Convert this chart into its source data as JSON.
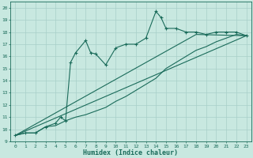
{
  "xlabel": "Humidex (Indice chaleur)",
  "bg_color": "#c8e8e0",
  "line_color": "#1a6b5a",
  "grid_color": "#a8cfc8",
  "xlim": [
    -0.5,
    23.5
  ],
  "ylim": [
    9,
    20.5
  ],
  "xticks": [
    0,
    1,
    2,
    3,
    4,
    5,
    6,
    7,
    8,
    9,
    10,
    11,
    12,
    13,
    14,
    15,
    16,
    17,
    18,
    19,
    20,
    21,
    22,
    23
  ],
  "yticks": [
    9,
    10,
    11,
    12,
    13,
    14,
    15,
    16,
    17,
    18,
    19,
    20
  ],
  "curve1_x": [
    0,
    1,
    2,
    3,
    4,
    4.5,
    5,
    5.5,
    6,
    7,
    7.5,
    8,
    9,
    10,
    11,
    12,
    13,
    14,
    14.5,
    15,
    16,
    17,
    18,
    19,
    20,
    21,
    22,
    23
  ],
  "curve1_y": [
    9.5,
    9.7,
    9.7,
    10.2,
    10.5,
    11.0,
    10.7,
    15.5,
    16.3,
    17.3,
    16.3,
    16.2,
    15.3,
    16.7,
    17.0,
    17.0,
    17.5,
    19.7,
    19.2,
    18.3,
    18.3,
    18.0,
    18.0,
    17.8,
    18.0,
    18.0,
    18.0,
    17.7
  ],
  "curve2_x": [
    0,
    1,
    2,
    3,
    4,
    5,
    6,
    7,
    8,
    9,
    10,
    11,
    12,
    13,
    14,
    15,
    16,
    17,
    18,
    19,
    20,
    21,
    22,
    23
  ],
  "curve2_y": [
    9.5,
    9.7,
    9.7,
    10.2,
    10.3,
    10.7,
    11.0,
    11.2,
    11.5,
    11.8,
    12.3,
    12.7,
    13.2,
    13.7,
    14.2,
    15.0,
    15.5,
    16.0,
    16.5,
    16.8,
    17.2,
    17.5,
    17.8,
    17.7
  ],
  "curve3_x": [
    0,
    23
  ],
  "curve3_y": [
    9.5,
    17.7
  ],
  "curve4_x": [
    0,
    18,
    23
  ],
  "curve4_y": [
    9.5,
    17.8,
    17.7
  ]
}
